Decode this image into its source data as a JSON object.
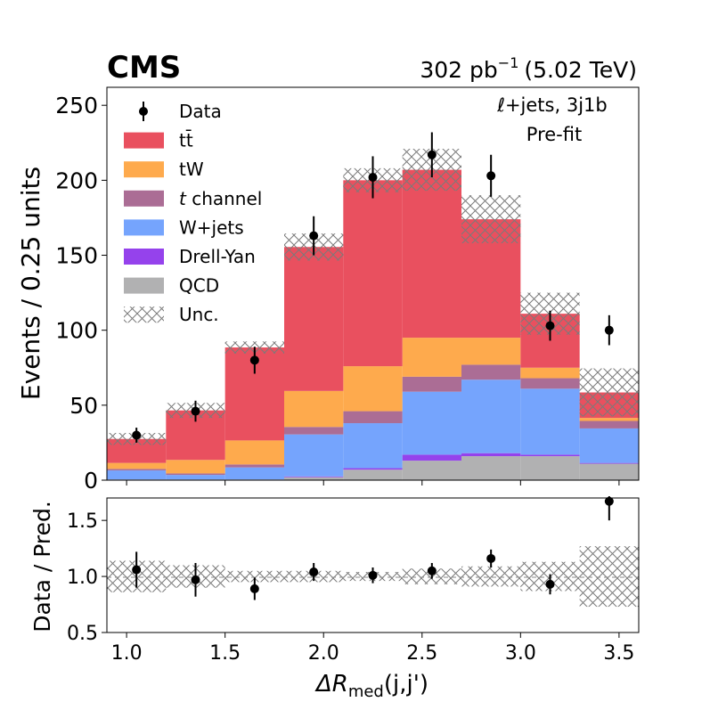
{
  "chart_data": {
    "type": "bar",
    "title": "CMS",
    "lumi_label": "302 pb",
    "lumi_exponent": "−1",
    "energy_label": "(5.02 TeV)",
    "channel_label": "ℓ+jets, 3j1b",
    "fit_label": "Pre-fit",
    "xlabel_main": "ΔR",
    "xlabel_sub": "med",
    "xlabel_tail": "(j,j')",
    "ylabel": "Events / 0.25 units",
    "ratio_ylabel": "Data / Pred.",
    "xlim": [
      0.9,
      3.6
    ],
    "ylim": [
      0,
      262
    ],
    "ratio_ylim": [
      0.5,
      1.7
    ],
    "x_ticks": [
      "1.0",
      "1.5",
      "2.0",
      "2.5",
      "3.0",
      "3.5"
    ],
    "y_ticks": [
      "0",
      "50",
      "100",
      "150",
      "200",
      "250"
    ],
    "ratio_y_ticks": [
      "0.5",
      "1.0",
      "1.5"
    ],
    "bin_edges": [
      0.9,
      1.2,
      1.5,
      1.8,
      2.1,
      2.4,
      2.7,
      3.0,
      3.3,
      3.6
    ],
    "bin_centers": [
      1.05,
      1.35,
      1.65,
      1.95,
      2.25,
      2.55,
      2.85,
      3.15,
      3.45
    ],
    "legend": [
      {
        "key": "data",
        "label": "Data",
        "kind": "marker"
      },
      {
        "key": "ttbar",
        "label": "tt̄",
        "kind": "box"
      },
      {
        "key": "tw",
        "label": "tW",
        "kind": "box"
      },
      {
        "key": "tchan",
        "label": "t channel",
        "kind": "box",
        "italic_prefix": "t",
        "rest": " channel"
      },
      {
        "key": "wjets",
        "label": "W+jets",
        "kind": "box"
      },
      {
        "key": "dy",
        "label": "Drell-Yan",
        "kind": "box"
      },
      {
        "key": "qcd",
        "label": "QCD",
        "kind": "box"
      },
      {
        "key": "unc",
        "label": "Unc.",
        "kind": "hatch"
      }
    ],
    "series": [
      {
        "key": "qcd",
        "name": "QCD",
        "color": "#b1b1b2",
        "values": [
          0.5,
          0.5,
          0.5,
          2,
          7,
          13,
          16,
          16,
          11
        ]
      },
      {
        "key": "dy",
        "name": "Drell-Yan",
        "color": "#9542ec",
        "values": [
          0,
          0,
          0,
          0.5,
          1,
          4,
          2,
          1,
          0.5
        ]
      },
      {
        "key": "wjets",
        "name": "W+jets",
        "color": "#75a4fd",
        "values": [
          6,
          3,
          8,
          28,
          30,
          42,
          49,
          44,
          23
        ]
      },
      {
        "key": "tchan",
        "name": "t channel",
        "color": "#ab6d95",
        "values": [
          1,
          1,
          2,
          5,
          8,
          10,
          10,
          7,
          5
        ]
      },
      {
        "key": "tw",
        "name": "tW",
        "color": "#feaa4d",
        "values": [
          4,
          9,
          16,
          24,
          30,
          26,
          18,
          7,
          2
        ]
      },
      {
        "key": "ttbar",
        "name": "tt̄",
        "color": "#e9505f",
        "values": [
          16,
          33,
          62,
          96,
          124,
          112,
          79,
          36,
          17
        ]
      }
    ],
    "uncertainty": [
      4,
      5,
      4,
      9,
      8,
      14,
      16,
      14,
      16
    ],
    "data": {
      "values": [
        30,
        46,
        80,
        163,
        202,
        217,
        203,
        103,
        100
      ],
      "errors": [
        5,
        7,
        9,
        13,
        14,
        15,
        14,
        10,
        10
      ]
    },
    "ratio": {
      "values": [
        1.06,
        0.97,
        0.89,
        1.04,
        1.01,
        1.05,
        1.16,
        0.93,
        1.67
      ],
      "errors": [
        0.16,
        0.15,
        0.1,
        0.08,
        0.07,
        0.07,
        0.08,
        0.09,
        0.17
      ],
      "unc": [
        0.14,
        0.1,
        0.05,
        0.05,
        0.04,
        0.07,
        0.09,
        0.13,
        0.27
      ]
    }
  }
}
